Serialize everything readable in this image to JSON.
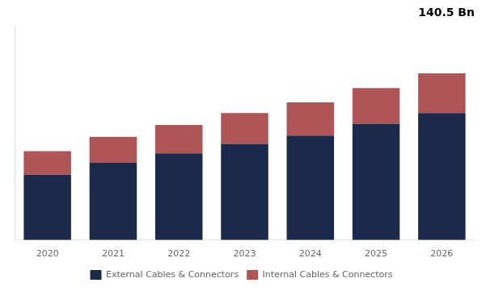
{
  "chart_data": {
    "type": "bar",
    "stacked": true,
    "annotation": "140.5 Bn",
    "categories": [
      "2020",
      "2021",
      "2022",
      "2023",
      "2024",
      "2025",
      "2026"
    ],
    "series": [
      {
        "name": "External Cables & Connectors",
        "color": "#1b2a4a",
        "values": [
          55,
          65,
          73,
          81,
          88,
          98,
          107
        ]
      },
      {
        "name": "Internal Cables & Connectors",
        "color": "#b05555",
        "values": [
          20,
          22,
          24,
          26,
          28,
          30,
          33.5
        ]
      }
    ],
    "ylim": [
      0,
      180
    ],
    "yticks": [],
    "tick_labels": "x",
    "grid": false,
    "legend": "bottom"
  }
}
